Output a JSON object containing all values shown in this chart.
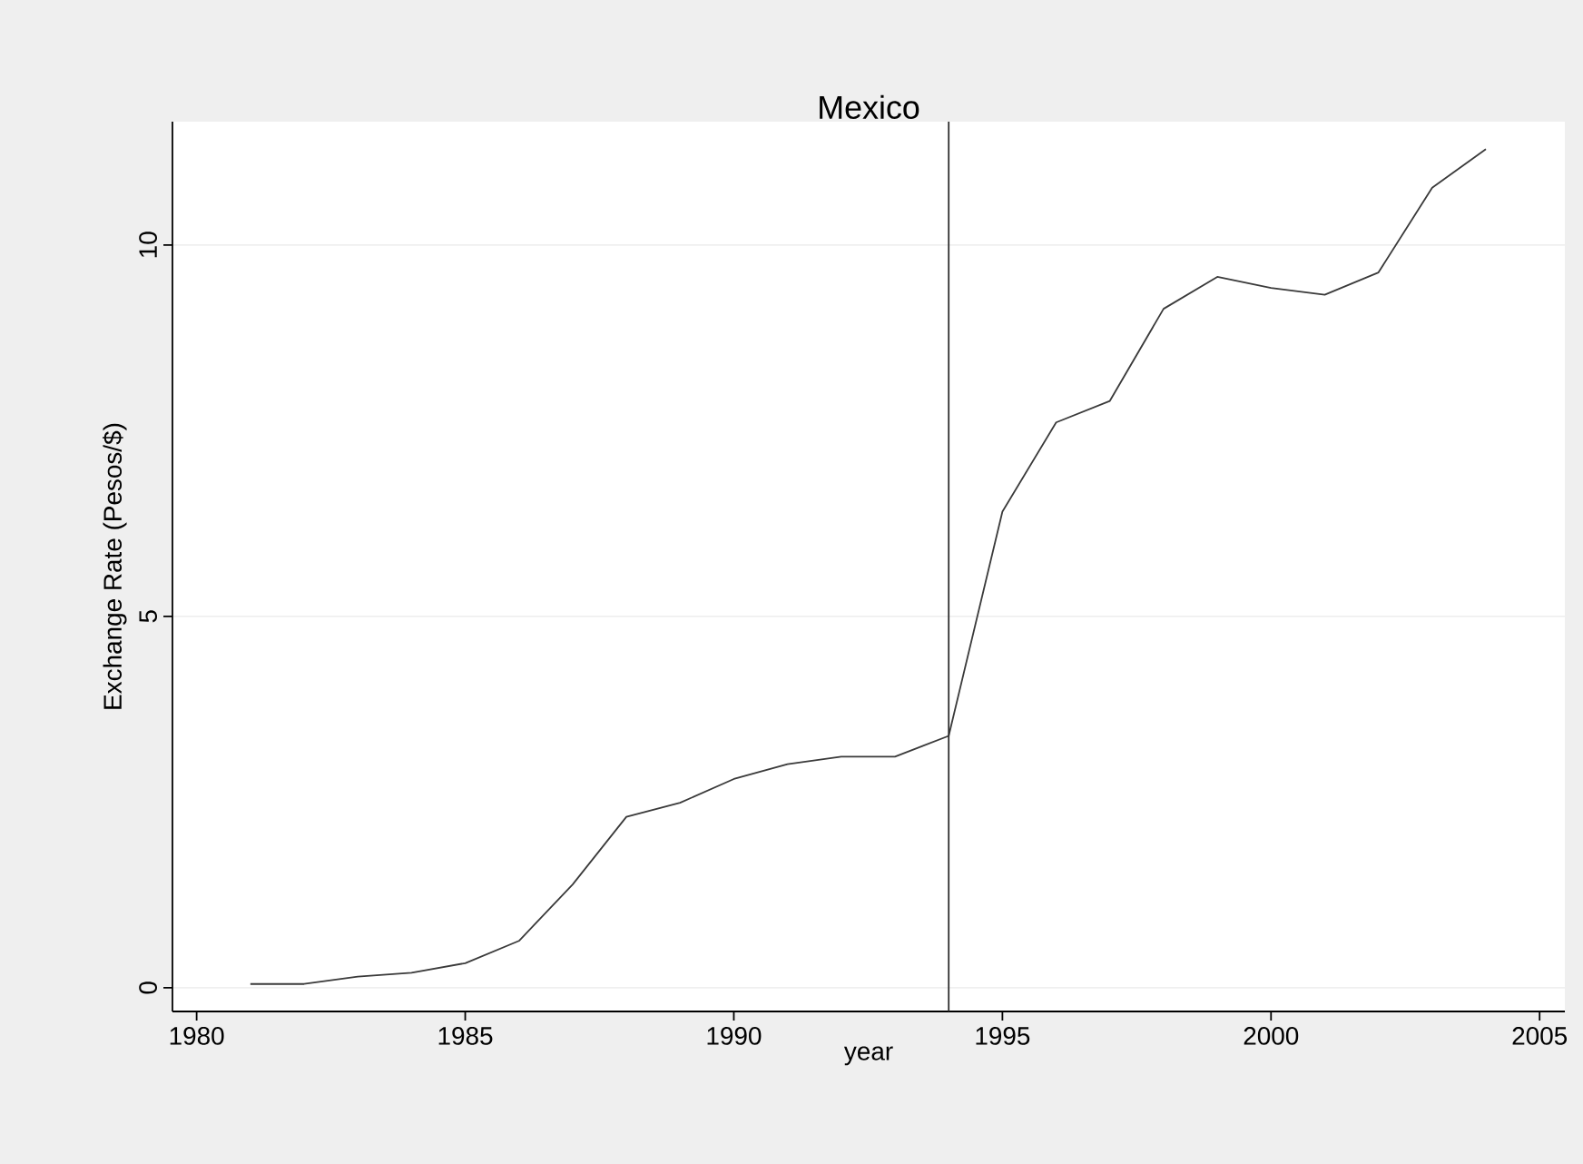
{
  "chart_data": {
    "type": "line",
    "title": "Mexico",
    "xlabel": "year",
    "ylabel": "Exchange Rate (Pesos/$)",
    "x": [
      1981,
      1982,
      1983,
      1984,
      1985,
      1986,
      1987,
      1988,
      1989,
      1990,
      1991,
      1992,
      1993,
      1994,
      1995,
      1996,
      1997,
      1998,
      1999,
      2000,
      2001,
      2002,
      2003,
      2004
    ],
    "series": [
      {
        "color": "#3a3a3a",
        "values": [
          0.05,
          0.05,
          0.15,
          0.2,
          0.33,
          0.63,
          1.39,
          2.3,
          2.49,
          2.81,
          3.01,
          3.11,
          3.11,
          3.39,
          6.41,
          7.61,
          7.9,
          9.14,
          9.57,
          9.42,
          9.33,
          9.63,
          10.77,
          11.29
        ]
      }
    ],
    "xlim": [
      1979.55,
      2005.47
    ],
    "ylim": [
      -0.32,
      11.66
    ],
    "xticks": [
      1980,
      1985,
      1990,
      1995,
      2000,
      2005
    ],
    "yticks": [
      0,
      5,
      10
    ],
    "ref_lines": [
      {
        "axis": "x",
        "value": 1994,
        "color": "#303030"
      }
    ],
    "grid": "y",
    "marker": "none",
    "line_style": "solid"
  }
}
